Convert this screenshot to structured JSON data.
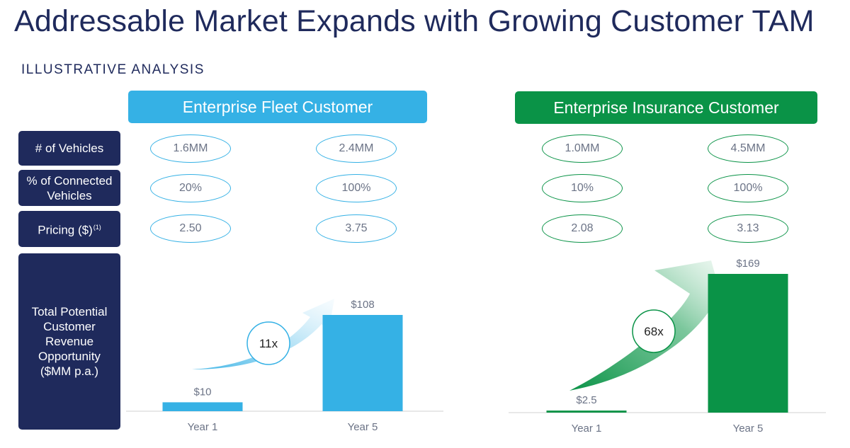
{
  "title": "Addressable Market Expands with Growing Customer TAM",
  "subtitle": "ILLUSTRATIVE ANALYSIS",
  "row_labels": {
    "vehicles": "# of Vehicles",
    "connected": "% of Connected Vehicles",
    "pricing": "Pricing ($)",
    "pricing_footnote": "(1)",
    "revenue": "Total Potential Customer Revenue Opportunity ($MM p.a.)"
  },
  "colors": {
    "navy": "#1f2a5c",
    "fleet": "#35b1e5",
    "insurance": "#0a9347"
  },
  "fleet": {
    "header": "Enterprise Fleet Customer",
    "vehicles": [
      "1.6MM",
      "2.4MM"
    ],
    "connected": [
      "20%",
      "100%"
    ],
    "pricing": [
      "2.50",
      "3.75"
    ]
  },
  "insurance": {
    "header": "Enterprise Insurance Customer",
    "vehicles": [
      "1.0MM",
      "4.5MM"
    ],
    "connected": [
      "10%",
      "100%"
    ],
    "pricing": [
      "2.08",
      "3.13"
    ]
  },
  "chart_data": [
    {
      "type": "bar",
      "categories": [
        "Year 1",
        "Year 5"
      ],
      "values": [
        10,
        108
      ],
      "value_labels": [
        "$10",
        "$108"
      ],
      "annotation": "11x",
      "ylim": [
        0,
        108
      ],
      "color": "#35b1e5"
    },
    {
      "type": "bar",
      "categories": [
        "Year 1",
        "Year 5"
      ],
      "values": [
        2.5,
        169
      ],
      "value_labels": [
        "$2.5",
        "$169"
      ],
      "annotation": "68x",
      "ylim": [
        0,
        169
      ],
      "color": "#0a9347"
    }
  ]
}
